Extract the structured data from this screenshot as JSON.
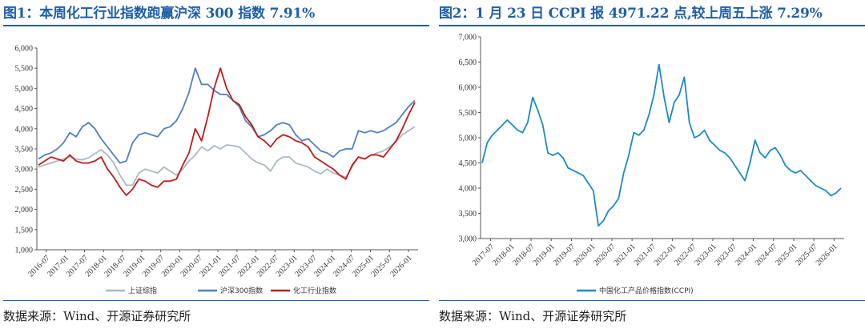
{
  "left": {
    "title": "图1：本周化工行业指数跑赢沪深 300 指数 7.91%",
    "source": "数据来源：Wind、开源证券研究所"
  },
  "right": {
    "title": "图2：1 月 23 日 CCPI 报 4971.22 点,较上周五上涨 7.29%",
    "source": "数据来源：Wind、开源证券研究所"
  },
  "chart_data": [
    {
      "type": "line",
      "ylim": [
        1000,
        6000
      ],
      "yticks": [
        "1,000",
        "1,500",
        "2,000",
        "2,500",
        "3,000",
        "3,500",
        "4,000",
        "4,500",
        "5,000",
        "5,500",
        "6,000"
      ],
      "xticks": [
        "2016-07",
        "2017-01",
        "2017-07",
        "2018-01",
        "2018-07",
        "2019-01",
        "2019-07",
        "2020-01",
        "2020-07",
        "2021-01",
        "2021-07",
        "2022-01",
        "2022-07",
        "2023-01",
        "2023-07",
        "2024-01",
        "2024-07",
        "2025-01",
        "2025-07",
        "2026-01"
      ],
      "grid": false,
      "legend_position": "bottom",
      "series": [
        {
          "name": "上证综指",
          "color": "#a9b8c4",
          "values": [
            3050,
            3100,
            3150,
            3200,
            3250,
            3300,
            3250,
            3230,
            3280,
            3380,
            3480,
            3350,
            3150,
            2850,
            2600,
            2600,
            2900,
            3000,
            2950,
            2900,
            3050,
            2950,
            2850,
            3000,
            3200,
            3350,
            3550,
            3450,
            3580,
            3500,
            3600,
            3580,
            3550,
            3400,
            3250,
            3150,
            3100,
            2950,
            3200,
            3300,
            3300,
            3150,
            3100,
            3050,
            2950,
            2880,
            3000,
            2900,
            2850,
            2800,
            3050,
            3300,
            3250,
            3350,
            3400,
            3450,
            3550,
            3680,
            3850,
            3950,
            4050
          ]
        },
        {
          "name": "沪深300指数",
          "color": "#4f7fc0",
          "values": [
            3250,
            3350,
            3400,
            3500,
            3650,
            3900,
            3800,
            4050,
            4150,
            4000,
            3750,
            3550,
            3350,
            3150,
            3200,
            3650,
            3850,
            3900,
            3850,
            3800,
            4000,
            4050,
            4200,
            4500,
            4900,
            5500,
            5100,
            5100,
            4950,
            4850,
            4850,
            4700,
            4550,
            4200,
            4050,
            3800,
            3850,
            3950,
            4100,
            4150,
            4100,
            3850,
            3700,
            3750,
            3600,
            3450,
            3400,
            3300,
            3450,
            3500,
            3500,
            3950,
            3900,
            3950,
            3900,
            3950,
            4050,
            4150,
            4350,
            4550,
            4700
          ]
        },
        {
          "name": "化工行业指数",
          "color": "#c01b1b",
          "values": [
            3100,
            3200,
            3300,
            3250,
            3200,
            3350,
            3200,
            3150,
            3150,
            3200,
            3300,
            3000,
            2800,
            2550,
            2350,
            2500,
            2750,
            2700,
            2600,
            2550,
            2700,
            2700,
            2750,
            3100,
            3400,
            4000,
            3700,
            4300,
            5000,
            5500,
            5000,
            4700,
            4600,
            4300,
            4100,
            3800,
            3700,
            3550,
            3750,
            3850,
            3800,
            3700,
            3650,
            3550,
            3300,
            3200,
            3100,
            3000,
            2850,
            2750,
            3100,
            3300,
            3250,
            3350,
            3350,
            3300,
            3500,
            3700,
            4000,
            4350,
            4650
          ]
        }
      ]
    },
    {
      "type": "line",
      "ylim": [
        3000,
        7000
      ],
      "yticks": [
        "3,000",
        "3,500",
        "4,000",
        "4,500",
        "5,000",
        "5,500",
        "6,000",
        "6,500",
        "7,000"
      ],
      "xticks": [
        "2017-07",
        "2018-01",
        "2018-07",
        "2019-01",
        "2019-07",
        "2020-01",
        "2020-07",
        "2021-01",
        "2021-07",
        "2022-01",
        "2022-07",
        "2023-01",
        "2023-07",
        "2024-01",
        "2024-07",
        "2025-01",
        "2025-07",
        "2026-01"
      ],
      "grid": false,
      "legend_position": "bottom",
      "series": [
        {
          "name": "中国化工产品价格指数(CCPI)",
          "color": "#1b8ac9",
          "values": [
            4500,
            4900,
            5050,
            5150,
            5250,
            5350,
            5250,
            5150,
            5100,
            5300,
            5800,
            5550,
            5250,
            4700,
            4650,
            4700,
            4600,
            4400,
            4350,
            4300,
            4250,
            4100,
            3950,
            3250,
            3350,
            3550,
            3650,
            3800,
            4300,
            4650,
            5100,
            5050,
            5150,
            5450,
            5850,
            6450,
            5800,
            5300,
            5700,
            5850,
            6200,
            5300,
            5000,
            5050,
            5150,
            4950,
            4850,
            4750,
            4700,
            4600,
            4450,
            4300,
            4150,
            4500,
            4950,
            4700,
            4600,
            4750,
            4800,
            4650,
            4450,
            4350,
            4300,
            4350,
            4250,
            4150,
            4050,
            4000,
            3950,
            3850,
            3900,
            4000
          ]
        }
      ]
    }
  ]
}
